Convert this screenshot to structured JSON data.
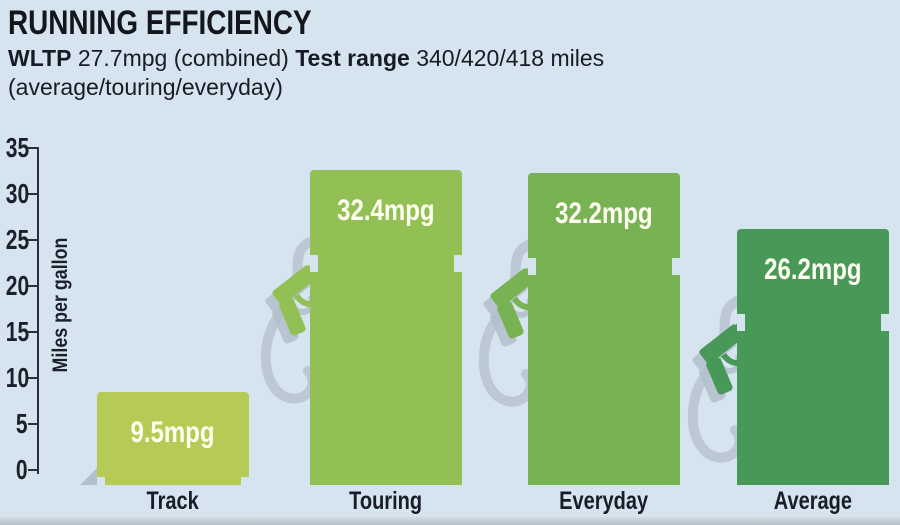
{
  "header": {
    "title": "RUNNING EFFICIENCY",
    "subtitle": {
      "wltp_label": "WLTP",
      "wltp_value": "27.7mpg (combined)",
      "range_label": "Test range",
      "range_value": "340/420/418 miles",
      "range_detail": "(average/touring/everyday)"
    }
  },
  "chart_data": {
    "type": "bar",
    "title": "Running efficiency",
    "categories": [
      "Track",
      "Touring",
      "Everyday",
      "Average"
    ],
    "values": [
      9.5,
      32.4,
      32.2,
      26.2
    ],
    "value_labels": [
      "9.5mpg",
      "32.4mpg",
      "32.2mpg",
      "26.2mpg"
    ],
    "bar_colors": [
      "#b6cb55",
      "#93c054",
      "#77b253",
      "#489857"
    ],
    "ylabel": "Miles per gallon",
    "yticks": [
      0,
      5,
      10,
      15,
      20,
      25,
      30,
      35
    ],
    "ylim": [
      0,
      35
    ],
    "grid": false,
    "legend": "none",
    "background_color": "#d5e4ef",
    "hose_color": "#bcc8d3",
    "shadow_color": "#b3bfca",
    "axis_color": "#2a2f3a",
    "text_color": "#191d28",
    "value_label_color": "#fffef2",
    "icons": [
      "fuel-nozzle-icon",
      "fuel-hose"
    ]
  }
}
